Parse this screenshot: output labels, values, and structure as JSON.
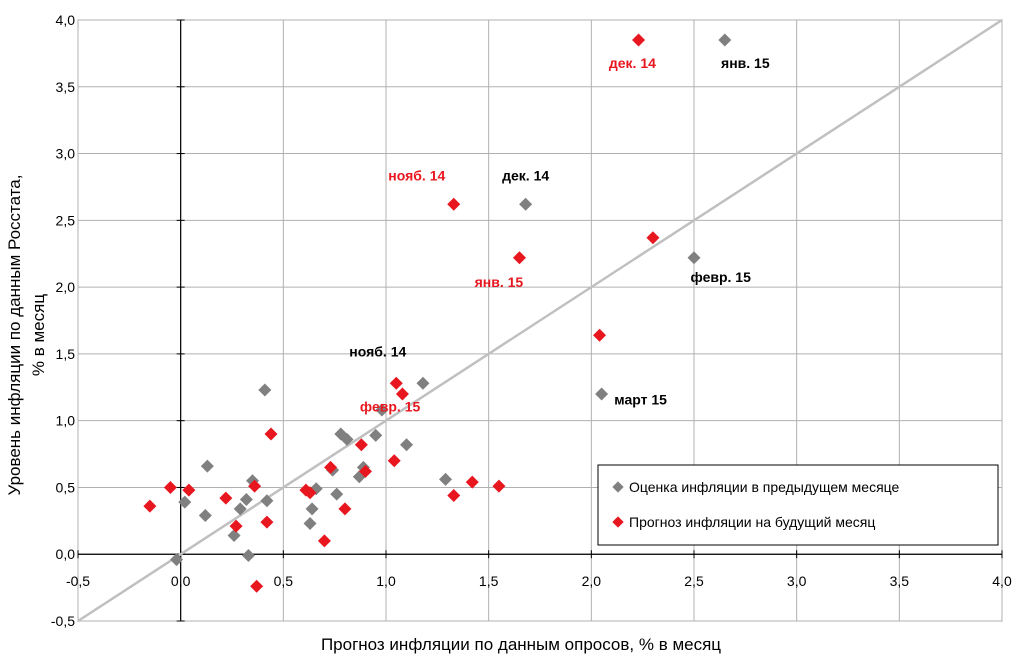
{
  "chart_data": {
    "type": "scatter",
    "xlabel": "Прогноз инфляции по данным опросов, % в месяц",
    "ylabel_line1": "Уровень инфляции по данным Росстата,",
    "ylabel_line2": "% в месяц",
    "xlim": [
      -0.5,
      4.0
    ],
    "ylim": [
      -0.5,
      4.0
    ],
    "x_ticks": [
      "-0,5",
      "0,0",
      "0,5",
      "1,0",
      "1,5",
      "2,0",
      "2,5",
      "3,0",
      "3,5",
      "4,0"
    ],
    "y_ticks": [
      "-0,5",
      "0,0",
      "0,5",
      "1,0",
      "1,5",
      "2,0",
      "2,5",
      "3,0",
      "3,5",
      "4,0"
    ],
    "grid": true,
    "diagonal": {
      "from": [
        -0.5,
        -0.5
      ],
      "to": [
        4.0,
        4.0
      ],
      "color": "#c0c0c0"
    },
    "legend_position": "bottom-right",
    "series": [
      {
        "name": "Оценка инфляции в предыдущем месяце",
        "color": "#808080",
        "points": [
          [
            -0.02,
            -0.04
          ],
          [
            0.02,
            0.39
          ],
          [
            0.12,
            0.29
          ],
          [
            0.13,
            0.66
          ],
          [
            0.26,
            0.14
          ],
          [
            0.29,
            0.34
          ],
          [
            0.32,
            0.41
          ],
          [
            0.33,
            -0.01
          ],
          [
            0.35,
            0.55
          ],
          [
            0.41,
            1.23
          ],
          [
            0.42,
            0.4
          ],
          [
            0.63,
            0.23
          ],
          [
            0.64,
            0.34
          ],
          [
            0.66,
            0.49
          ],
          [
            0.74,
            0.63
          ],
          [
            0.76,
            0.45
          ],
          [
            0.78,
            0.9
          ],
          [
            0.81,
            0.86
          ],
          [
            0.87,
            0.58
          ],
          [
            0.89,
            0.65
          ],
          [
            0.95,
            0.89
          ],
          [
            0.98,
            1.08
          ],
          [
            1.1,
            0.82
          ],
          [
            1.18,
            1.28
          ],
          [
            1.29,
            0.56
          ],
          [
            1.68,
            2.62
          ],
          [
            2.05,
            1.2
          ],
          [
            2.5,
            2.22
          ],
          [
            2.65,
            3.85
          ]
        ]
      },
      {
        "name": "Прогноз инфляции на будущий месяц",
        "color": "#e8171f",
        "points": [
          [
            -0.15,
            0.36
          ],
          [
            -0.05,
            0.5
          ],
          [
            0.04,
            0.48
          ],
          [
            0.22,
            0.42
          ],
          [
            0.27,
            0.21
          ],
          [
            0.36,
            0.51
          ],
          [
            0.37,
            -0.24
          ],
          [
            0.42,
            0.24
          ],
          [
            0.44,
            0.9
          ],
          [
            0.61,
            0.48
          ],
          [
            0.63,
            0.46
          ],
          [
            0.7,
            0.1
          ],
          [
            0.73,
            0.65
          ],
          [
            0.8,
            0.34
          ],
          [
            0.88,
            0.82
          ],
          [
            0.9,
            0.62
          ],
          [
            1.04,
            0.7
          ],
          [
            1.05,
            1.28
          ],
          [
            1.08,
            1.2
          ],
          [
            1.33,
            0.44
          ],
          [
            1.33,
            2.62
          ],
          [
            1.42,
            0.54
          ],
          [
            1.55,
            0.51
          ],
          [
            1.65,
            2.22
          ],
          [
            2.04,
            1.64
          ],
          [
            2.23,
            3.85
          ],
          [
            2.3,
            2.37
          ]
        ]
      }
    ],
    "annotations": [
      {
        "text": "нояб. 14",
        "color": "#e8171f",
        "x": 1.15,
        "y": 2.8
      },
      {
        "text": "дек. 14",
        "color": "#000000",
        "x": 1.68,
        "y": 2.8
      },
      {
        "text": "дек. 14",
        "color": "#e8171f",
        "x": 2.2,
        "y": 3.64
      },
      {
        "text": "янв. 15",
        "color": "#000000",
        "x": 2.75,
        "y": 3.64
      },
      {
        "text": "янв. 15",
        "color": "#e8171f",
        "x": 1.55,
        "y": 2.0
      },
      {
        "text": "февр. 15",
        "color": "#000000",
        "x": 2.63,
        "y": 2.04
      },
      {
        "text": "нояб. 14",
        "color": "#000000",
        "x": 0.96,
        "y": 1.48
      },
      {
        "text": "февр. 15",
        "color": "#e8171f",
        "x": 1.02,
        "y": 1.07
      },
      {
        "text": "март 15",
        "color": "#000000",
        "x": 2.24,
        "y": 1.12
      }
    ]
  }
}
